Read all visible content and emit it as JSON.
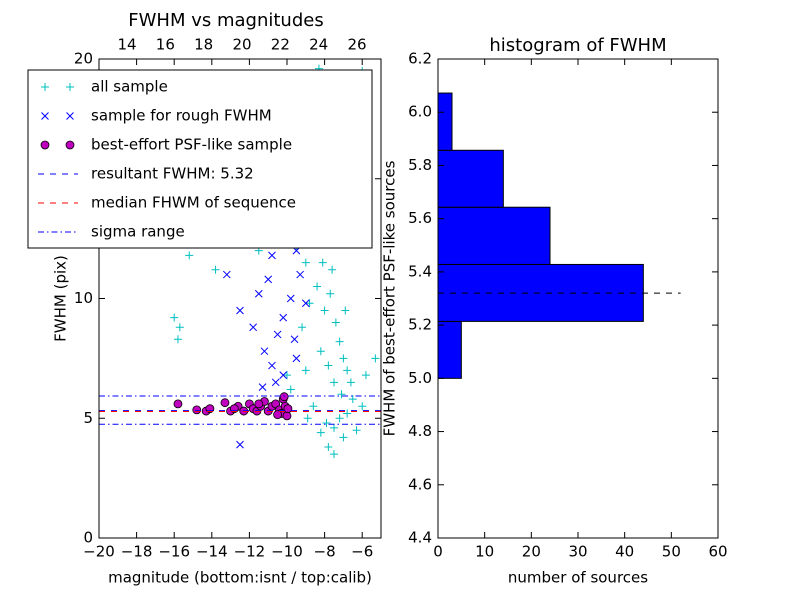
{
  "chart_data": [
    {
      "type": "scatter",
      "title": "FWHM vs magnitudes",
      "x_label": "magnitude (bottom:isnt / top:calib)",
      "y_label": "FWHM (pix)",
      "xlim": [
        -20,
        -5
      ],
      "ylim": [
        0,
        20
      ],
      "xticks": [
        {
          "value": -20,
          "label": "−20"
        },
        {
          "value": -18,
          "label": "−18"
        },
        {
          "value": -16,
          "label": "−16"
        },
        {
          "value": -14,
          "label": "−14"
        },
        {
          "value": -12,
          "label": "−12"
        },
        {
          "value": -10,
          "label": "−10"
        },
        {
          "value": -8,
          "label": "−8"
        },
        {
          "value": -6,
          "label": "−6"
        }
      ],
      "yticks": [
        0,
        5,
        10,
        15,
        20
      ],
      "x2lim": [
        12.54,
        27.25
      ],
      "x2ticks": [
        14,
        16,
        18,
        20,
        22,
        24,
        26
      ],
      "series": [
        {
          "name": "all sample",
          "color": "#00bfbf",
          "marker": "+",
          "x": [
            -16,
            -15.8,
            -15.7,
            -15.7,
            -15.2,
            -14.8,
            -13.8,
            -12.5,
            -11.5,
            -10.2,
            -9.5,
            -9,
            -8.8,
            -8.5,
            -8.3,
            -8.5,
            -8.2,
            -8,
            -7.8,
            -8.2,
            -8.4,
            -8,
            -7.6,
            -7.4,
            -8.8,
            -9.2,
            -7.2,
            -7,
            -6.8,
            -6.6,
            -7.5,
            -7.8,
            -8.2,
            -9,
            -6.5,
            -6.8,
            -7.2,
            -7.5,
            -7.9,
            -6.3,
            -7,
            -7.8,
            -7.5,
            -6,
            -5.8,
            -5.3,
            -6,
            -7.3,
            -8,
            -9.8,
            -10,
            -8.6,
            -8.9,
            -8.2,
            -7.1,
            -6.9,
            -7.7,
            -8.1,
            -7.9,
            -8.6
          ],
          "y": [
            9.2,
            8.3,
            8.8,
            12.8,
            11.8,
            12.5,
            11.2,
            13.5,
            12,
            13,
            12.2,
            11.5,
            14,
            16,
            19.6,
            18,
            17,
            15,
            13,
            12.5,
            10.5,
            9.5,
            11.2,
            9,
            9.8,
            8.8,
            8.2,
            7.5,
            7,
            6.5,
            6.5,
            7.2,
            7.8,
            7,
            5.8,
            5.2,
            5,
            4.6,
            4.8,
            4.5,
            4.2,
            3.8,
            3.5,
            5.5,
            6.8,
            7.5,
            19.5,
            19.3,
            18.5,
            6.2,
            6.8,
            5.5,
            5,
            4.4,
            6,
            9.5,
            10.2,
            11.5,
            13.8,
            15.5
          ]
        },
        {
          "name": "sample for rough FWHM",
          "color": "#0000ff",
          "marker": "x",
          "x": [
            -12.5,
            -13.2,
            -12.5,
            -11.8,
            -11.5,
            -11,
            -10.8,
            -10.5,
            -10,
            -9.5,
            -11.2,
            -10.8,
            -10.5,
            -10.2,
            -11,
            -9.8,
            -9.5,
            -9,
            -10.2,
            -9.6,
            -11.3,
            -10.6,
            -9.3
          ],
          "y": [
            3.9,
            11,
            9.5,
            8.8,
            10.2,
            12.5,
            11.8,
            13.5,
            13,
            12,
            7.8,
            7.2,
            8.5,
            9.2,
            10.8,
            10,
            7.5,
            9.8,
            6.8,
            8.3,
            6.3,
            6.5,
            11
          ]
        },
        {
          "name": "best-effort PSF-like sample",
          "color": "#bf00bf",
          "marker": "o",
          "x": [
            -15.8,
            -14.8,
            -14.3,
            -14.1,
            -13.3,
            -13,
            -12.6,
            -12.3,
            -12,
            -11.8,
            -11.6,
            -11.4,
            -11.2,
            -11,
            -10.8,
            -10.6,
            -10.4,
            -10.3,
            -10.2,
            -10.1,
            -10,
            -9.95,
            -10.5,
            -11.5,
            -12.8,
            -10.15
          ],
          "y": [
            5.6,
            5.35,
            5.3,
            5.4,
            5.65,
            5.3,
            5.5,
            5.3,
            5.6,
            5.4,
            5.3,
            5.5,
            5.7,
            5.3,
            5.5,
            5.6,
            5.35,
            5.2,
            5.8,
            5.5,
            5.1,
            5.4,
            5.15,
            5.6,
            5.4,
            5.9
          ]
        },
        {
          "name": "resultant FWHM: 5.32",
          "color": "#0000ff",
          "linestyle": "dashed",
          "values": [
            5.32
          ]
        },
        {
          "name": "median FHWM of sequence",
          "color": "#ff0000",
          "linestyle": "dashed",
          "values": [
            5.28
          ]
        },
        {
          "name": "sigma range",
          "color": "#0000ff",
          "linestyle": "dashdot",
          "values": [
            5.93,
            4.75
          ]
        }
      ]
    },
    {
      "type": "histogram",
      "title": "histogram of FWHM",
      "orientation": "horizontal",
      "x_label": "number of sources",
      "y_label": "FWHM of best-effort PSF-like sources",
      "xlim": [
        0,
        60
      ],
      "ylim": [
        4.4,
        6.2
      ],
      "xticks": [
        0,
        10,
        20,
        30,
        40,
        50,
        60
      ],
      "yticks": [
        4.4,
        4.6,
        4.8,
        {
          "value": 5.0,
          "label": "5.0"
        },
        5.2,
        5.4,
        5.6,
        5.8,
        {
          "value": 6.0,
          "label": "6.0"
        },
        6.2
      ],
      "bins": [
        5.0,
        5.214,
        5.428,
        5.643,
        5.857,
        6.072
      ],
      "values": [
        5,
        44,
        24,
        14,
        3
      ],
      "color": "#0000ff",
      "reference_line": {
        "value": 5.32,
        "extent": 52,
        "color": "#000000"
      }
    }
  ]
}
